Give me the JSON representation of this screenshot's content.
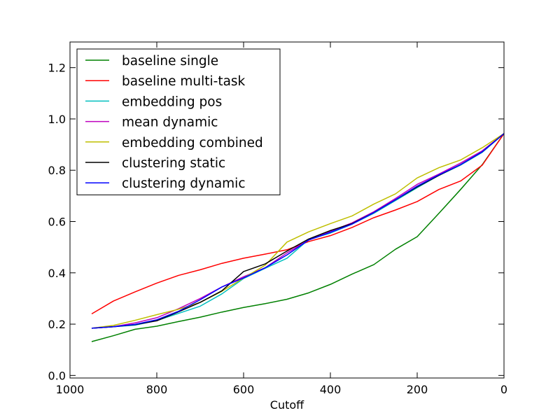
{
  "chart_data": {
    "type": "line",
    "xlabel": "Cutoff",
    "ylabel": "",
    "title": "",
    "xlim": [
      1000,
      0
    ],
    "ylim": [
      -0.01,
      1.3
    ],
    "xticks": [
      1000,
      800,
      600,
      400,
      200,
      0
    ],
    "yticks": [
      0.0,
      0.2,
      0.4,
      0.6,
      0.8,
      1.0,
      1.2
    ],
    "xtick_labels": [
      "1000",
      "800",
      "600",
      "400",
      "200",
      "0"
    ],
    "ytick_labels": [
      "0.0",
      "0.2",
      "0.4",
      "0.6",
      "0.8",
      "1.0",
      "1.2"
    ],
    "grid": false,
    "legend_position": "top-left",
    "x": [
      950,
      900,
      850,
      800,
      750,
      700,
      650,
      600,
      550,
      500,
      450,
      400,
      350,
      300,
      250,
      200,
      150,
      100,
      50,
      0
    ],
    "series": [
      {
        "name": "baseline single",
        "color": "#008000",
        "values": [
          0.132,
          0.155,
          0.18,
          0.192,
          0.21,
          0.227,
          0.247,
          0.265,
          0.28,
          0.297,
          0.322,
          0.355,
          0.395,
          0.432,
          0.492,
          0.541,
          0.632,
          0.725,
          0.822,
          0.943
        ]
      },
      {
        "name": "baseline multi-task",
        "color": "#ff0000",
        "values": [
          0.24,
          0.29,
          0.326,
          0.36,
          0.39,
          0.412,
          0.437,
          0.457,
          0.473,
          0.49,
          0.522,
          0.545,
          0.577,
          0.615,
          0.645,
          0.678,
          0.725,
          0.758,
          0.82,
          0.943
        ]
      },
      {
        "name": "embedding pos",
        "color": "#00bfbf",
        "values": [
          0.184,
          0.19,
          0.196,
          0.214,
          0.242,
          0.27,
          0.318,
          0.378,
          0.418,
          0.457,
          0.53,
          0.555,
          0.59,
          0.632,
          0.682,
          0.732,
          0.78,
          0.82,
          0.87,
          0.943
        ]
      },
      {
        "name": "mean dynamic",
        "color": "#bf00bf",
        "values": [
          0.184,
          0.19,
          0.205,
          0.225,
          0.26,
          0.3,
          0.345,
          0.385,
          0.42,
          0.478,
          0.528,
          0.562,
          0.595,
          0.638,
          0.69,
          0.745,
          0.785,
          0.828,
          0.876,
          0.943
        ]
      },
      {
        "name": "embedding combined",
        "color": "#bfbf00",
        "values": [
          0.184,
          0.195,
          0.215,
          0.237,
          0.258,
          0.285,
          0.328,
          0.38,
          0.43,
          0.52,
          0.56,
          0.592,
          0.622,
          0.668,
          0.708,
          0.77,
          0.81,
          0.84,
          0.888,
          0.943
        ]
      },
      {
        "name": "clustering static",
        "color": "#000000",
        "values": [
          0.184,
          0.19,
          0.198,
          0.213,
          0.248,
          0.285,
          0.33,
          0.405,
          0.435,
          0.485,
          0.532,
          0.565,
          0.592,
          0.635,
          0.685,
          0.735,
          0.78,
          0.822,
          0.872,
          0.943
        ]
      },
      {
        "name": "clustering dynamic",
        "color": "#0000ff",
        "values": [
          0.184,
          0.19,
          0.199,
          0.217,
          0.25,
          0.295,
          0.345,
          0.38,
          0.42,
          0.47,
          0.528,
          0.558,
          0.59,
          0.635,
          0.685,
          0.738,
          0.782,
          0.822,
          0.872,
          0.943
        ]
      }
    ]
  }
}
